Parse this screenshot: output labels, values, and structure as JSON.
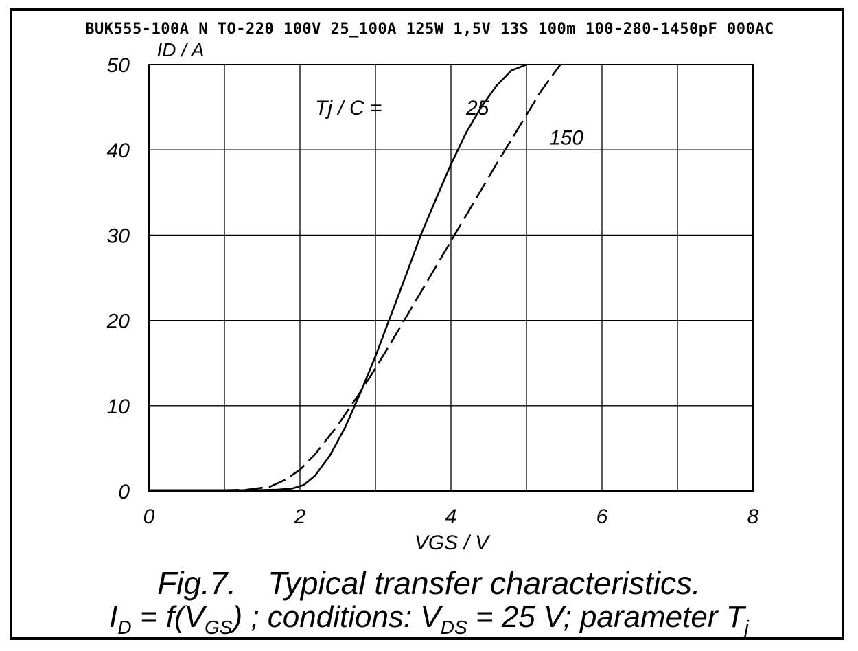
{
  "header": "BUK555-100A N TO-220 100V 25_100A 125W 1,5V 13S 100m 100-280-1450pF 000AC",
  "caption": {
    "fig_label": "Fig.7.",
    "fig_title": "Typical transfer characteristics.",
    "line2": {
      "I": "I",
      "D": "D",
      "eq_f": " = f(V",
      "GS": "GS",
      "cond": ") ; conditions: V",
      "DS": "DS",
      "tail": " = 25 V; parameter T",
      "j": "j"
    }
  },
  "chart_data": {
    "type": "line",
    "xlabel": "VGS / V",
    "ylabel": "ID / A",
    "xlim": [
      0,
      8
    ],
    "ylim": [
      0,
      50
    ],
    "x_ticks": [
      0,
      2,
      4,
      6,
      8
    ],
    "y_ticks": [
      0,
      10,
      20,
      30,
      40,
      50
    ],
    "grid_x_step": 1,
    "grid_y_step": 10,
    "grid": true,
    "legend_title": "Tj / C =",
    "series": [
      {
        "name": "25",
        "style": "solid",
        "x": [
          0,
          1.0,
          1.4,
          1.7,
          1.9,
          2.05,
          2.2,
          2.4,
          2.6,
          2.8,
          3.0,
          3.2,
          3.4,
          3.6,
          3.8,
          4.0,
          4.2,
          4.4,
          4.6,
          4.8,
          5.0
        ],
        "y": [
          0.1,
          0.1,
          0.1,
          0.15,
          0.3,
          0.7,
          1.8,
          4.2,
          7.5,
          11.5,
          15.8,
          20.5,
          25.2,
          30.0,
          34.2,
          38.3,
          42.0,
          45.0,
          47.5,
          49.3,
          50
        ]
      },
      {
        "name": "150",
        "style": "dashed",
        "x": [
          0,
          1.0,
          1.3,
          1.6,
          1.8,
          2.0,
          2.2,
          2.5,
          2.8,
          3.0,
          3.2,
          3.4,
          3.6,
          3.8,
          4.0,
          4.2,
          4.4,
          4.6,
          4.8,
          5.0,
          5.2,
          5.45
        ],
        "y": [
          0.1,
          0.1,
          0.15,
          0.5,
          1.3,
          2.5,
          4.3,
          7.7,
          11.6,
          14.4,
          17.3,
          20.3,
          23.3,
          26.3,
          29.3,
          32.3,
          35.3,
          38.3,
          41.2,
          44.1,
          47.0,
          50
        ]
      }
    ],
    "series_labels": [
      {
        "text": "25",
        "x": 4.2,
        "y": 45.0
      },
      {
        "text": "150",
        "x": 5.3,
        "y": 41.5
      }
    ],
    "legend_title_pos": {
      "x": 2.2,
      "y": 45.0
    }
  }
}
